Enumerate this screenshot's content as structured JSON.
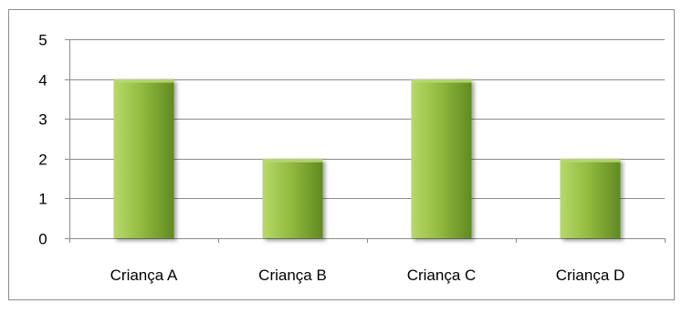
{
  "chart_data": {
    "type": "bar",
    "categories": [
      "Criança A",
      "Criança B",
      "Criança C",
      "Criança D"
    ],
    "series": [
      {
        "values": [
          4,
          2,
          4,
          2
        ]
      }
    ],
    "title": "",
    "xlabel": "",
    "ylabel": "",
    "ylim": [
      0,
      5
    ],
    "yticks": [
      "0",
      "1",
      "2",
      "3",
      "4",
      "5"
    ],
    "grid": true,
    "legend": "none",
    "colors": {
      "bar_light": "#b7d96a",
      "bar_mid": "#93bc3f",
      "bar_dark": "#5f8a22",
      "grid": "#8c8c8c",
      "axis": "#8c8c8c",
      "frame": "#8c8c8c",
      "text": "#000000"
    }
  }
}
